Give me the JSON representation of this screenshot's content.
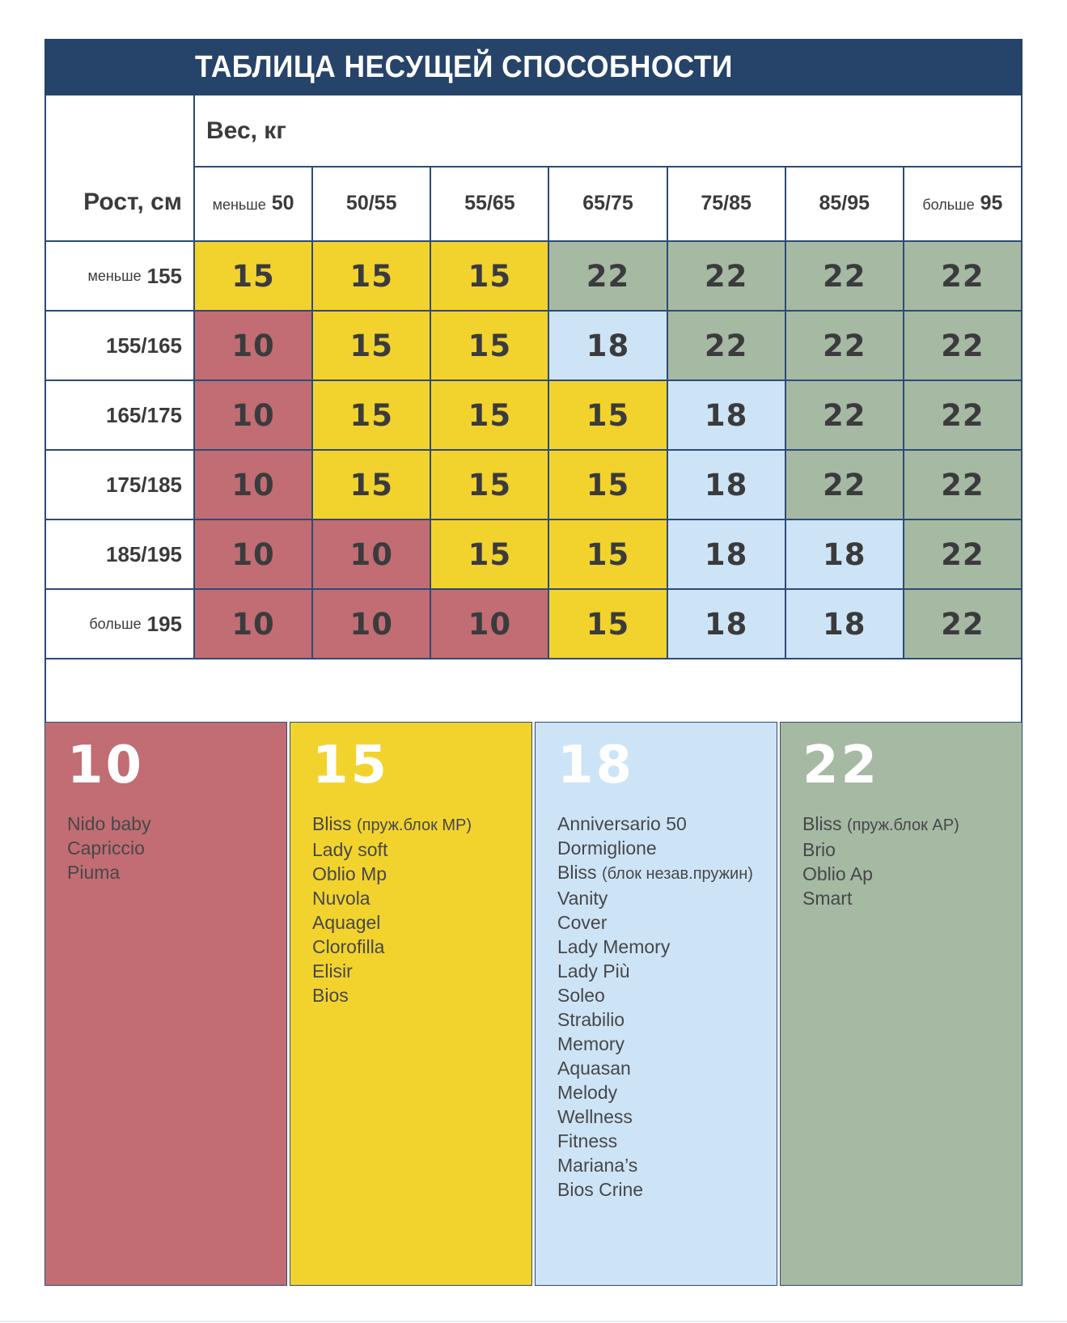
{
  "header": {
    "title": "ТАБЛИЦА НЕСУЩЕЙ СПОСОБНОСТИ"
  },
  "chart_data": {
    "type": "table",
    "title": "ТАБЛИЦА НЕСУЩЕЙ СПОСОБНОСТИ",
    "x_axis": {
      "label": "Вес, кг",
      "categories": [
        {
          "prefix": "меньше",
          "value": "50"
        },
        {
          "prefix": "",
          "value": "50/55"
        },
        {
          "prefix": "",
          "value": "55/65"
        },
        {
          "prefix": "",
          "value": "65/75"
        },
        {
          "prefix": "",
          "value": "75/85"
        },
        {
          "prefix": "",
          "value": "85/95"
        },
        {
          "prefix": "больше",
          "value": "95"
        }
      ]
    },
    "y_axis": {
      "label": "Рост, см",
      "categories": [
        {
          "prefix": "меньше",
          "value": "155"
        },
        {
          "prefix": "",
          "value": "155/165"
        },
        {
          "prefix": "",
          "value": "165/175"
        },
        {
          "prefix": "",
          "value": "175/185"
        },
        {
          "prefix": "",
          "value": "185/195"
        },
        {
          "prefix": "больше",
          "value": "195"
        }
      ]
    },
    "values": [
      [
        15,
        15,
        15,
        22,
        22,
        22,
        22
      ],
      [
        10,
        15,
        15,
        18,
        22,
        22,
        22
      ],
      [
        10,
        15,
        15,
        15,
        18,
        22,
        22
      ],
      [
        10,
        15,
        15,
        15,
        18,
        22,
        22
      ],
      [
        10,
        10,
        15,
        15,
        18,
        18,
        22
      ],
      [
        10,
        10,
        10,
        15,
        18,
        18,
        22
      ]
    ],
    "cell_colors_by_value": {
      "10": "#c16d73",
      "15": "#f2d32d",
      "18": "#cde4f6",
      "22": "#a6b9a3"
    },
    "legend": [
      {
        "value": "10",
        "color": "#c16d73",
        "items": [
          "Nido baby",
          "Capriccio",
          "Piuma"
        ]
      },
      {
        "value": "15",
        "color": "#f2d32d",
        "items": [
          "Bliss (пруж.блок MP)",
          "Lady soft",
          "Oblio Mp",
          "Nuvola",
          "Aquagel",
          "Clorofilla",
          "Elisir",
          "Bios"
        ]
      },
      {
        "value": "18",
        "color": "#cde4f6",
        "items": [
          "Anniversario 50",
          "Dormiglione",
          "Bliss (блок незав.пружин)",
          "Vanity",
          "Cover",
          "Lady Memory",
          "Lady Più",
          "Soleo",
          "Strabilio",
          "Memory",
          "Aquasan",
          "Melody",
          "Wellness",
          "Fitness",
          "Mariana’s",
          "Bios Crine"
        ]
      },
      {
        "value": "22",
        "color": "#a6b9a3",
        "items": [
          "Bliss (пруж.блок AP)",
          "Brio",
          "Oblio Ap",
          "Smart"
        ]
      }
    ]
  },
  "colors": {
    "header_navy": "#264369",
    "grid_line": "#2e4a76",
    "value_text": "#3b3b3d",
    "legend_number": "#ffffff",
    "legend_text": "#47474b",
    "background": "#ffffff"
  }
}
